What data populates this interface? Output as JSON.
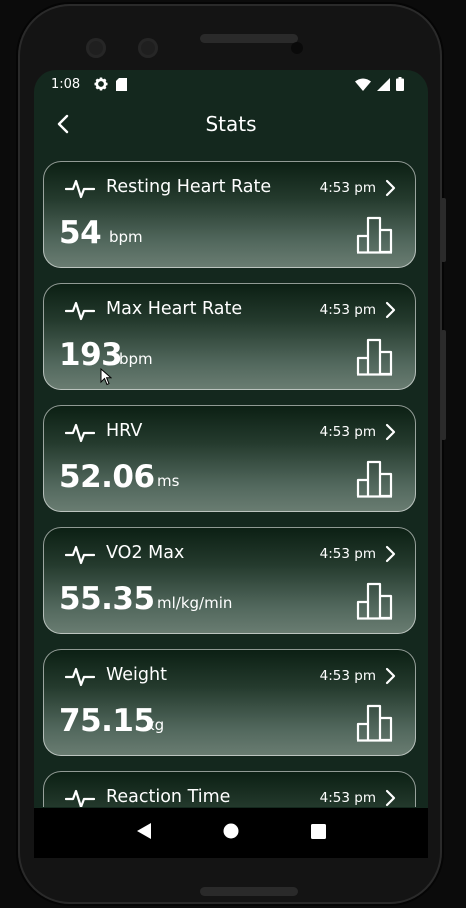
{
  "status_bar": {
    "time": "1:08",
    "left_icons": [
      "gear-icon",
      "sd-card-icon"
    ],
    "right_icons": [
      "wifi-icon",
      "cell-signal-icon",
      "battery-icon"
    ]
  },
  "header": {
    "back_icon": "chevron-left-icon",
    "title": "Stats"
  },
  "stats": [
    {
      "name": "Resting Heart Rate",
      "time": "4:53 pm",
      "value": "54",
      "unit": "bpm"
    },
    {
      "name": "Max Heart Rate",
      "time": "4:53 pm",
      "value": "193",
      "unit": "bpm"
    },
    {
      "name": "HRV",
      "time": "4:53 pm",
      "value": "52.06",
      "unit": "ms"
    },
    {
      "name": "VO2 Max",
      "time": "4:53 pm",
      "value": "55.35",
      "unit": "ml/kg/min"
    },
    {
      "name": "Weight",
      "time": "4:53 pm",
      "value": "75.15",
      "unit": "kg"
    },
    {
      "name": "Reaction Time",
      "time": "4:53 pm",
      "value": "",
      "unit": ""
    }
  ],
  "navigation": {
    "buttons": [
      "back-triangle-icon",
      "home-circle-icon",
      "recents-square-icon"
    ]
  },
  "colors": {
    "screen_bg": "#14281e",
    "card_top": "#0b1f13",
    "card_bottom": "#6a7d72",
    "text": "#ffffff"
  }
}
